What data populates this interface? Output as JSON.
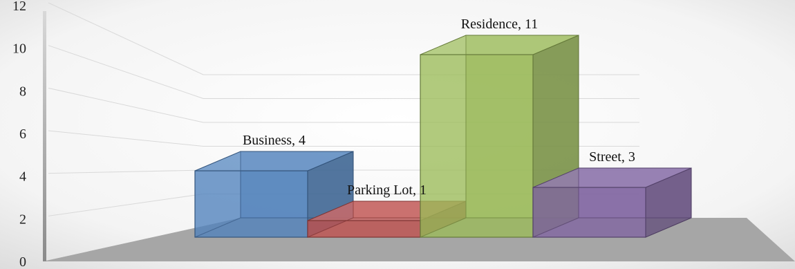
{
  "chart_data": {
    "type": "bar",
    "categories": [
      "Business",
      "Parking Lot",
      "Residence",
      "Street"
    ],
    "values": [
      4,
      1,
      11,
      3
    ],
    "data_labels": [
      "Business, 4",
      "Parking Lot, 1",
      "Residence, 11",
      "Street, 3"
    ],
    "ylim": [
      0,
      12
    ],
    "yticks": [
      "0",
      "2",
      "4",
      "6",
      "8",
      "10",
      "12"
    ],
    "grid": true,
    "legend": "none",
    "style": "3d-column",
    "colors": [
      "#4f81bd",
      "#c0504d",
      "#9bbb59",
      "#8064a2"
    ]
  }
}
